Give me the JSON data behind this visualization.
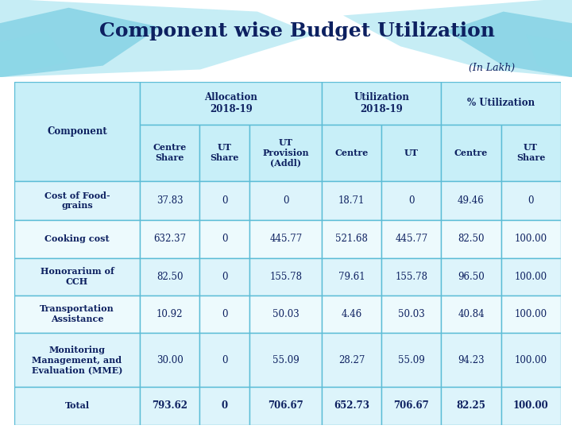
{
  "title": "Component wise Budget Utilization",
  "subtitle": "(In Lakh)",
  "background_color": "#ffffff",
  "header_bg": "#c8eff8",
  "row_bg_light": "#ddf4fb",
  "row_bg_lighter": "#edfafd",
  "total_bg": "#ddf4fb",
  "border_color": "#5bbcd6",
  "wave_color1": "#8dd8e8",
  "wave_color2": "#6bc8de",
  "wave_color3": "#aee6f2",
  "title_color": "#0d2060",
  "text_color": "#0d2060",
  "title_fontsize": 18,
  "subtitle_fontsize": 9,
  "header_fontsize": 8.5,
  "subheader_fontsize": 8,
  "cell_fontsize": 8.5,
  "rows": [
    {
      "component": "Cost of Food-\ngrains",
      "values": [
        "37.83",
        "0",
        "0",
        "18.71",
        "0",
        "49.46",
        "0"
      ],
      "is_total": false
    },
    {
      "component": "Cooking cost",
      "values": [
        "632.37",
        "0",
        "445.77",
        "521.68",
        "445.77",
        "82.50",
        "100.00"
      ],
      "is_total": false
    },
    {
      "component": "Honorarium of\nCCH",
      "values": [
        "82.50",
        "0",
        "155.78",
        "79.61",
        "155.78",
        "96.50",
        "100.00"
      ],
      "is_total": false
    },
    {
      "component": "Transportation\nAssistance",
      "values": [
        "10.92",
        "0",
        "50.03",
        "4.46",
        "50.03",
        "40.84",
        "100.00"
      ],
      "is_total": false
    },
    {
      "component": "Monitoring\nManagement, and\nEvaluation (MME)",
      "values": [
        "30.00",
        "0",
        "55.09",
        "28.27",
        "55.09",
        "94.23",
        "100.00"
      ],
      "is_total": false
    },
    {
      "component": "Total",
      "values": [
        "793.62",
        "0",
        "706.67",
        "652.73",
        "706.67",
        "82.25",
        "100.00"
      ],
      "is_total": true
    }
  ]
}
